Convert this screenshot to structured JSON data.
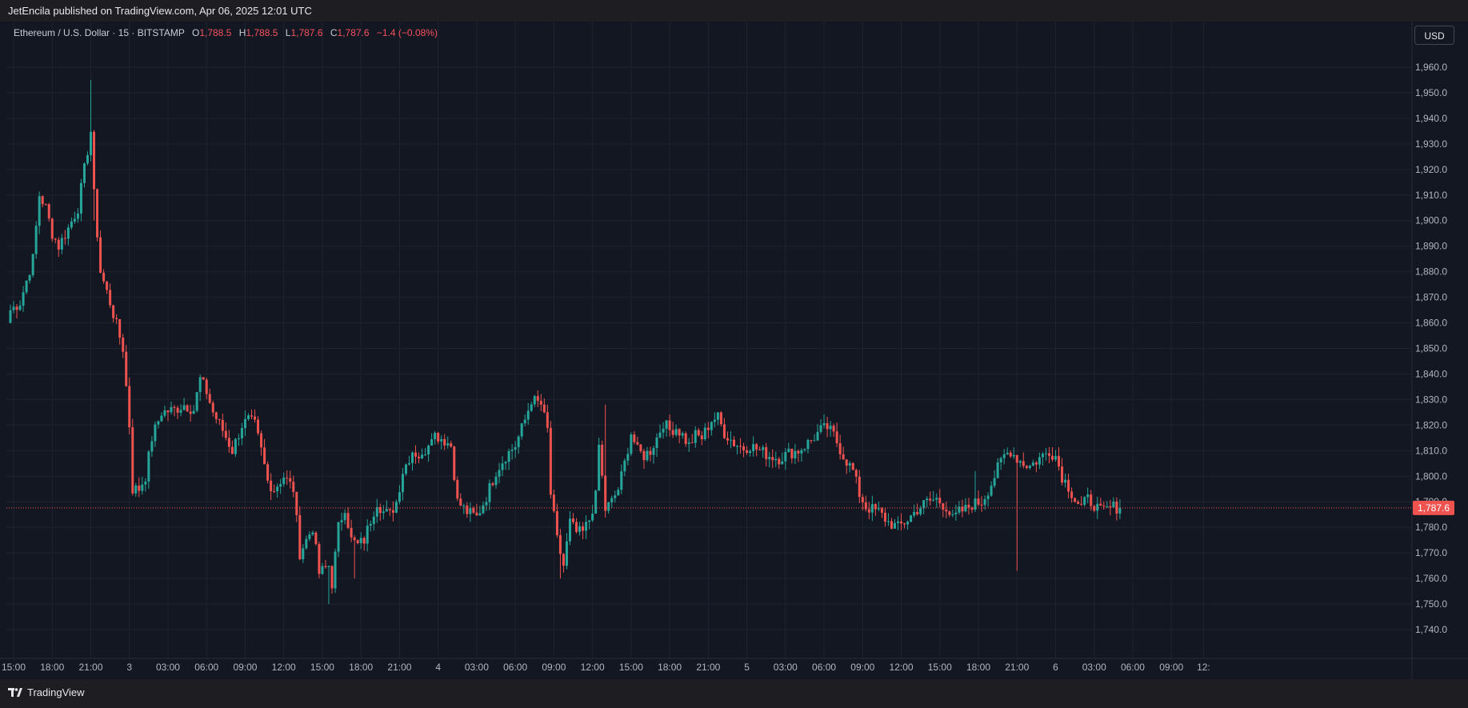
{
  "header": {
    "published": "JetEncila published on TradingView.com, Apr 06, 2025 12:01 UTC"
  },
  "legend": {
    "symbol": "Ethereum / U.S. Dollar · 15 · BITSTAMP",
    "open_label": "O",
    "open": "1,788.5",
    "high_label": "H",
    "high": "1,788.5",
    "low_label": "L",
    "low": "1,787.6",
    "close_label": "C",
    "close": "1,787.6",
    "change": "−1.4 (−0.08%)"
  },
  "currency": "USD",
  "last_price_label": "1,787.6",
  "footer": {
    "brand": "TradingView"
  },
  "colors": {
    "background": "#131722",
    "up": "#26a69a",
    "down": "#ef5350",
    "grid": "#1f2330",
    "text": "#b2b5be"
  },
  "chart_data": {
    "type": "candlestick",
    "title": "Ethereum / U.S. Dollar · 15 · BITSTAMP",
    "interval": "15",
    "ylim": [
      1735,
      1965
    ],
    "y_ticks": [
      1740,
      1750,
      1760,
      1770,
      1780,
      1790,
      1800,
      1810,
      1820,
      1830,
      1840,
      1850,
      1860,
      1870,
      1880,
      1890,
      1900,
      1910,
      1920,
      1930,
      1940,
      1950,
      1960
    ],
    "x_ticks": [
      {
        "label": "15:00",
        "t": 1
      },
      {
        "label": "18:00",
        "t": 13
      },
      {
        "label": "21:00",
        "t": 25
      },
      {
        "label": "3",
        "t": 37
      },
      {
        "label": "03:00",
        "t": 49
      },
      {
        "label": "06:00",
        "t": 61
      },
      {
        "label": "09:00",
        "t": 73
      },
      {
        "label": "12:00",
        "t": 85
      },
      {
        "label": "15:00",
        "t": 97
      },
      {
        "label": "18:00",
        "t": 109
      },
      {
        "label": "21:00",
        "t": 121
      },
      {
        "label": "4",
        "t": 133
      },
      {
        "label": "03:00",
        "t": 145
      },
      {
        "label": "06:00",
        "t": 157
      },
      {
        "label": "09:00",
        "t": 169
      },
      {
        "label": "12:00",
        "t": 181
      },
      {
        "label": "15:00",
        "t": 193
      },
      {
        "label": "18:00",
        "t": 205
      },
      {
        "label": "21:00",
        "t": 217
      },
      {
        "label": "5",
        "t": 229
      },
      {
        "label": "03:00",
        "t": 241
      },
      {
        "label": "06:00",
        "t": 253
      },
      {
        "label": "09:00",
        "t": 265
      },
      {
        "label": "12:00",
        "t": 277
      },
      {
        "label": "15:00",
        "t": 289
      },
      {
        "label": "18:00",
        "t": 301
      },
      {
        "label": "21:00",
        "t": 313
      },
      {
        "label": "6",
        "t": 325
      },
      {
        "label": "03:00",
        "t": 337
      },
      {
        "label": "06:00",
        "t": 349
      },
      {
        "label": "09:00",
        "t": 361
      },
      {
        "label": "12:",
        "t": 371
      }
    ],
    "price_anchors": [
      [
        0,
        1865
      ],
      [
        3,
        1868
      ],
      [
        7,
        1885
      ],
      [
        9,
        1910
      ],
      [
        11,
        1905
      ],
      [
        13,
        1895
      ],
      [
        15,
        1890
      ],
      [
        18,
        1897
      ],
      [
        21,
        1905
      ],
      [
        25,
        1935
      ],
      [
        26,
        1910
      ],
      [
        28,
        1880
      ],
      [
        31,
        1868
      ],
      [
        35,
        1850
      ],
      [
        37,
        1820
      ],
      [
        38,
        1795
      ],
      [
        40,
        1795
      ],
      [
        42,
        1800
      ],
      [
        44,
        1815
      ],
      [
        47,
        1825
      ],
      [
        51,
        1826
      ],
      [
        54,
        1828
      ],
      [
        57,
        1826
      ],
      [
        59,
        1838
      ],
      [
        61,
        1833
      ],
      [
        63,
        1825
      ],
      [
        66,
        1818
      ],
      [
        69,
        1810
      ],
      [
        72,
        1820
      ],
      [
        74,
        1822
      ],
      [
        76,
        1820
      ],
      [
        78,
        1810
      ],
      [
        80,
        1798
      ],
      [
        82,
        1795
      ],
      [
        85,
        1800
      ],
      [
        88,
        1795
      ],
      [
        90,
        1770
      ],
      [
        92,
        1775
      ],
      [
        94,
        1780
      ],
      [
        96,
        1762
      ],
      [
        99,
        1765
      ],
      [
        100,
        1758
      ],
      [
        102,
        1780
      ],
      [
        104,
        1788
      ],
      [
        106,
        1775
      ],
      [
        108,
        1773
      ],
      [
        110,
        1775
      ],
      [
        112,
        1783
      ],
      [
        114,
        1790
      ],
      [
        116,
        1786
      ],
      [
        118,
        1785
      ],
      [
        120,
        1790
      ],
      [
        122,
        1802
      ],
      [
        125,
        1810
      ],
      [
        128,
        1807
      ],
      [
        131,
        1817
      ],
      [
        134,
        1815
      ],
      [
        137,
        1812
      ],
      [
        139,
        1790
      ],
      [
        142,
        1786
      ],
      [
        145,
        1784
      ],
      [
        148,
        1792
      ],
      [
        151,
        1802
      ],
      [
        154,
        1808
      ],
      [
        157,
        1812
      ],
      [
        160,
        1822
      ],
      [
        162,
        1830
      ],
      [
        165,
        1828
      ],
      [
        167,
        1818
      ],
      [
        168,
        1793
      ],
      [
        170,
        1775
      ],
      [
        172,
        1765
      ],
      [
        174,
        1782
      ],
      [
        176,
        1778
      ],
      [
        178,
        1778
      ],
      [
        180,
        1783
      ],
      [
        182,
        1792
      ],
      [
        183,
        1812
      ],
      [
        185,
        1787
      ],
      [
        187,
        1790
      ],
      [
        189,
        1795
      ],
      [
        191,
        1805
      ],
      [
        193,
        1817
      ],
      [
        195,
        1810
      ],
      [
        197,
        1808
      ],
      [
        199,
        1810
      ],
      [
        201,
        1815
      ],
      [
        203,
        1821
      ],
      [
        205,
        1818
      ],
      [
        207,
        1819
      ],
      [
        209,
        1816
      ],
      [
        211,
        1812
      ],
      [
        213,
        1816
      ],
      [
        215,
        1815
      ],
      [
        218,
        1822
      ],
      [
        220,
        1823
      ],
      [
        222,
        1817
      ],
      [
        225,
        1813
      ],
      [
        228,
        1811
      ],
      [
        230,
        1812
      ],
      [
        233,
        1810
      ],
      [
        236,
        1808
      ],
      [
        239,
        1807
      ],
      [
        242,
        1809
      ],
      [
        245,
        1810
      ],
      [
        249,
        1814
      ],
      [
        252,
        1818
      ],
      [
        254,
        1819
      ],
      [
        256,
        1816
      ],
      [
        259,
        1808
      ],
      [
        262,
        1802
      ],
      [
        264,
        1793
      ],
      [
        266,
        1788
      ],
      [
        270,
        1786
      ],
      [
        273,
        1782
      ],
      [
        276,
        1780
      ],
      [
        279,
        1783
      ],
      [
        282,
        1787
      ],
      [
        285,
        1790
      ],
      [
        288,
        1791
      ],
      [
        291,
        1788
      ],
      [
        293,
        1783
      ],
      [
        295,
        1786
      ],
      [
        297,
        1787
      ],
      [
        299,
        1789
      ],
      [
        302,
        1790
      ],
      [
        305,
        1797
      ],
      [
        307,
        1803
      ],
      [
        309,
        1808
      ],
      [
        311,
        1810
      ],
      [
        313,
        1807
      ],
      [
        315,
        1805
      ],
      [
        317,
        1804
      ],
      [
        319,
        1806
      ],
      [
        321,
        1808
      ],
      [
        323,
        1810
      ],
      [
        325,
        1808
      ],
      [
        327,
        1800
      ],
      [
        329,
        1796
      ],
      [
        331,
        1791
      ],
      [
        333,
        1788
      ],
      [
        335,
        1791
      ],
      [
        337,
        1789
      ],
      [
        339,
        1786
      ],
      [
        341,
        1787
      ],
      [
        343,
        1788
      ],
      [
        345,
        1787.6
      ]
    ],
    "last_price": 1787.6
  }
}
